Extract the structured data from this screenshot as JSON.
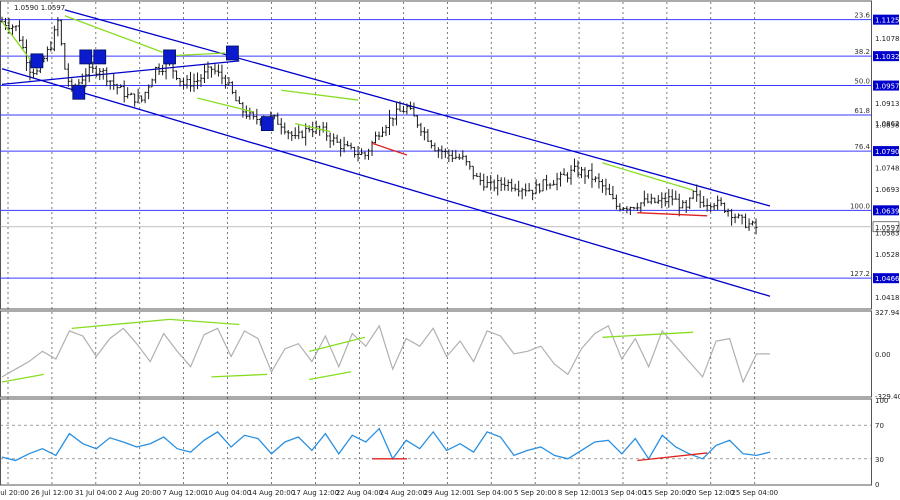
{
  "colors": {
    "background": "#ffffff",
    "candle": "#1a1a1a",
    "channel": "#0000cc",
    "fib_line": "#3a3aff",
    "fib_tag": "#0000cc",
    "divergence_bull": "#88dd22",
    "divergence_bear": "#dd2222",
    "cci_line": "#b0b0b0",
    "rsi_line": "#2a8fe0",
    "marker": "#0a1acc",
    "grid": "#222222",
    "frame": "#555555"
  },
  "price_header": "1.0590 1.0597",
  "chart_data": [
    {
      "type": "candlestick",
      "ylim": [
        1.039,
        1.117
      ],
      "x_tick_labels": [
        "21 Jul 20:00",
        "26 Jul 12:00",
        "31 Jul 04:00",
        "2 Aug 20:00",
        "7 Aug 12:00",
        "10 Aug 04:00",
        "14 Aug 20:00",
        "17 Aug 12:00",
        "22 Aug 04:00",
        "24 Aug 20:00",
        "29 Aug 12:00",
        "1 Sep 04:00",
        "5 Sep 20:00",
        "8 Sep 12:00",
        "13 Sep 04:00",
        "15 Sep 20:00",
        "20 Sep 12:00",
        "25 Sep 04:00"
      ],
      "y_tick_labels": [
        "1.1125",
        "1.1078",
        "1.1032",
        "1.0957",
        "1.0913",
        "1.0862",
        "1.0858",
        "1.0790",
        "1.0748",
        "1.0693",
        "1.0639",
        "1.0597",
        "1.0583",
        "1.0528",
        "1.0466",
        "1.0418"
      ],
      "fib_levels": [
        {
          "label": "23.6",
          "price": 1.1125
        },
        {
          "label": "38.2",
          "price": 1.1032
        },
        {
          "label": "50.0",
          "price": 1.0957
        },
        {
          "label": "61.8",
          "price": 1.0882
        },
        {
          "label": "76.4",
          "price": 1.079
        },
        {
          "label": "100.0",
          "price": 1.0639
        },
        {
          "label": "127.2",
          "price": 1.0466
        }
      ],
      "current_price": 1.0597,
      "price_path": [
        [
          0,
          1.112
        ],
        [
          2,
          1.1105
        ],
        [
          4,
          1.1
        ],
        [
          5,
          1.099
        ],
        [
          7,
          1.106
        ],
        [
          8,
          1.112
        ],
        [
          9,
          1.1
        ],
        [
          10,
          1.094
        ],
        [
          12,
          1.099
        ],
        [
          14,
          1.1
        ],
        [
          16,
          1.096
        ],
        [
          18,
          1.093
        ],
        [
          20,
          1.092
        ],
        [
          22,
          1.1
        ],
        [
          24,
          1.101
        ],
        [
          26,
          1.096
        ],
        [
          28,
          1.097
        ],
        [
          30,
          1.1
        ],
        [
          32,
          1.097
        ],
        [
          34,
          1.09
        ],
        [
          36,
          1.087
        ],
        [
          38,
          1.088
        ],
        [
          40,
          1.086
        ],
        [
          42,
          1.082
        ],
        [
          44,
          1.085
        ],
        [
          46,
          1.084
        ],
        [
          48,
          1.081
        ],
        [
          50,
          1.079
        ],
        [
          52,
          1.078
        ],
        [
          54,
          1.084
        ],
        [
          56,
          1.088
        ],
        [
          58,
          1.09
        ],
        [
          60,
          1.085
        ],
        [
          62,
          1.08
        ],
        [
          64,
          1.078
        ],
        [
          66,
          1.077
        ],
        [
          68,
          1.072
        ],
        [
          70,
          1.07
        ],
        [
          72,
          1.071
        ],
        [
          74,
          1.07
        ],
        [
          76,
          1.069
        ],
        [
          78,
          1.071
        ],
        [
          80,
          1.072
        ],
        [
          82,
          1.074
        ],
        [
          84,
          1.073
        ],
        [
          86,
          1.07
        ],
        [
          88,
          1.065
        ],
        [
          90,
          1.065
        ],
        [
          92,
          1.066
        ],
        [
          94,
          1.066
        ],
        [
          96,
          1.067
        ],
        [
          98,
          1.064
        ],
        [
          99,
          1.068
        ],
        [
          100,
          1.066
        ],
        [
          102,
          1.066
        ],
        [
          104,
          1.064
        ],
        [
          106,
          1.061
        ],
        [
          108,
          1.0595
        ]
      ],
      "channel_lines": [
        {
          "from": [
            0,
            1.096
          ],
          "to": [
            34,
            1.102
          ]
        },
        {
          "from": [
            9,
            1.115
          ],
          "to": [
            110,
            1.065
          ]
        },
        {
          "from": [
            0,
            1.1
          ],
          "to": [
            110,
            1.042
          ]
        }
      ],
      "divergence_segments": [
        {
          "color": "bull",
          "from": [
            0,
            1.112
          ],
          "to": [
            5,
            1.1
          ]
        },
        {
          "color": "bull",
          "from": [
            9,
            1.1135
          ],
          "to": [
            23,
            1.1042
          ]
        },
        {
          "color": "bull",
          "from": [
            23,
            1.1032
          ],
          "to": [
            32,
            1.104
          ]
        },
        {
          "color": "bull",
          "from": [
            28,
            1.0925
          ],
          "to": [
            36,
            1.089
          ]
        },
        {
          "color": "bull",
          "from": [
            40,
            1.0945
          ],
          "to": [
            51,
            1.092
          ]
        },
        {
          "color": "bull",
          "from": [
            42,
            1.086
          ],
          "to": [
            47,
            1.084
          ]
        },
        {
          "color": "bear",
          "from": [
            53,
            1.081
          ],
          "to": [
            58,
            1.078
          ]
        },
        {
          "color": "bull",
          "from": [
            86,
            1.076
          ],
          "to": [
            99,
            1.069
          ]
        },
        {
          "color": "bear",
          "from": [
            91,
            1.0633
          ],
          "to": [
            101,
            1.0625
          ]
        }
      ],
      "markers": [
        {
          "t": 5,
          "price": 1.102
        },
        {
          "t": 11,
          "price": 1.094
        },
        {
          "t": 12,
          "price": 1.103
        },
        {
          "t": 14,
          "price": 1.103
        },
        {
          "t": 24,
          "price": 1.103
        },
        {
          "t": 33,
          "price": 1.104
        },
        {
          "t": 38,
          "price": 1.086
        }
      ]
    },
    {
      "type": "line",
      "name": "CCI",
      "ylim": [
        -329.4,
        327.9
      ],
      "y_tick_labels": [
        "327.9475",
        "0.00",
        "-329.405"
      ],
      "values": [
        -180,
        -120,
        -60,
        20,
        -40,
        180,
        140,
        -20,
        120,
        200,
        80,
        -60,
        160,
        20,
        -100,
        150,
        200,
        -20,
        180,
        120,
        -140,
        40,
        80,
        -60,
        140,
        -100,
        160,
        60,
        220,
        -120,
        120,
        60,
        200,
        -20,
        100,
        -60,
        180,
        140,
        0,
        20,
        60,
        -80,
        -160,
        40,
        160,
        220,
        -40,
        120,
        -100,
        180,
        60,
        -60,
        -180,
        100,
        120,
        -220,
        0,
        0
      ],
      "divergence_segments": [
        {
          "from": [
            0,
            -220
          ],
          "to": [
            6,
            -160
          ]
        },
        {
          "from": [
            10,
            200
          ],
          "to": [
            24,
            270
          ]
        },
        {
          "from": [
            24,
            270
          ],
          "to": [
            34,
            230
          ]
        },
        {
          "from": [
            30,
            -180
          ],
          "to": [
            38,
            -160
          ]
        },
        {
          "from": [
            44,
            20
          ],
          "to": [
            52,
            130
          ]
        },
        {
          "from": [
            44,
            -200
          ],
          "to": [
            50,
            -140
          ]
        },
        {
          "from": [
            86,
            130
          ],
          "to": [
            99,
            170
          ]
        }
      ]
    },
    {
      "type": "line",
      "name": "RSI",
      "ylim": [
        0,
        100
      ],
      "y_tick_labels": [
        "100",
        "70",
        "30",
        "0"
      ],
      "values": [
        32,
        28,
        36,
        42,
        34,
        60,
        48,
        42,
        55,
        50,
        44,
        48,
        56,
        42,
        38,
        52,
        62,
        44,
        58,
        54,
        36,
        50,
        56,
        40,
        60,
        36,
        58,
        50,
        66,
        30,
        52,
        42,
        62,
        40,
        48,
        38,
        62,
        56,
        34,
        40,
        44,
        34,
        30,
        40,
        50,
        52,
        36,
        54,
        30,
        58,
        44,
        36,
        30,
        46,
        52,
        36,
        34,
        38
      ],
      "divergence_segments": [
        {
          "color": "bear",
          "from": [
            53,
            30
          ],
          "to": [
            58,
            30
          ]
        },
        {
          "color": "bear",
          "from": [
            91,
            28
          ],
          "to": [
            101,
            37
          ]
        }
      ]
    }
  ]
}
